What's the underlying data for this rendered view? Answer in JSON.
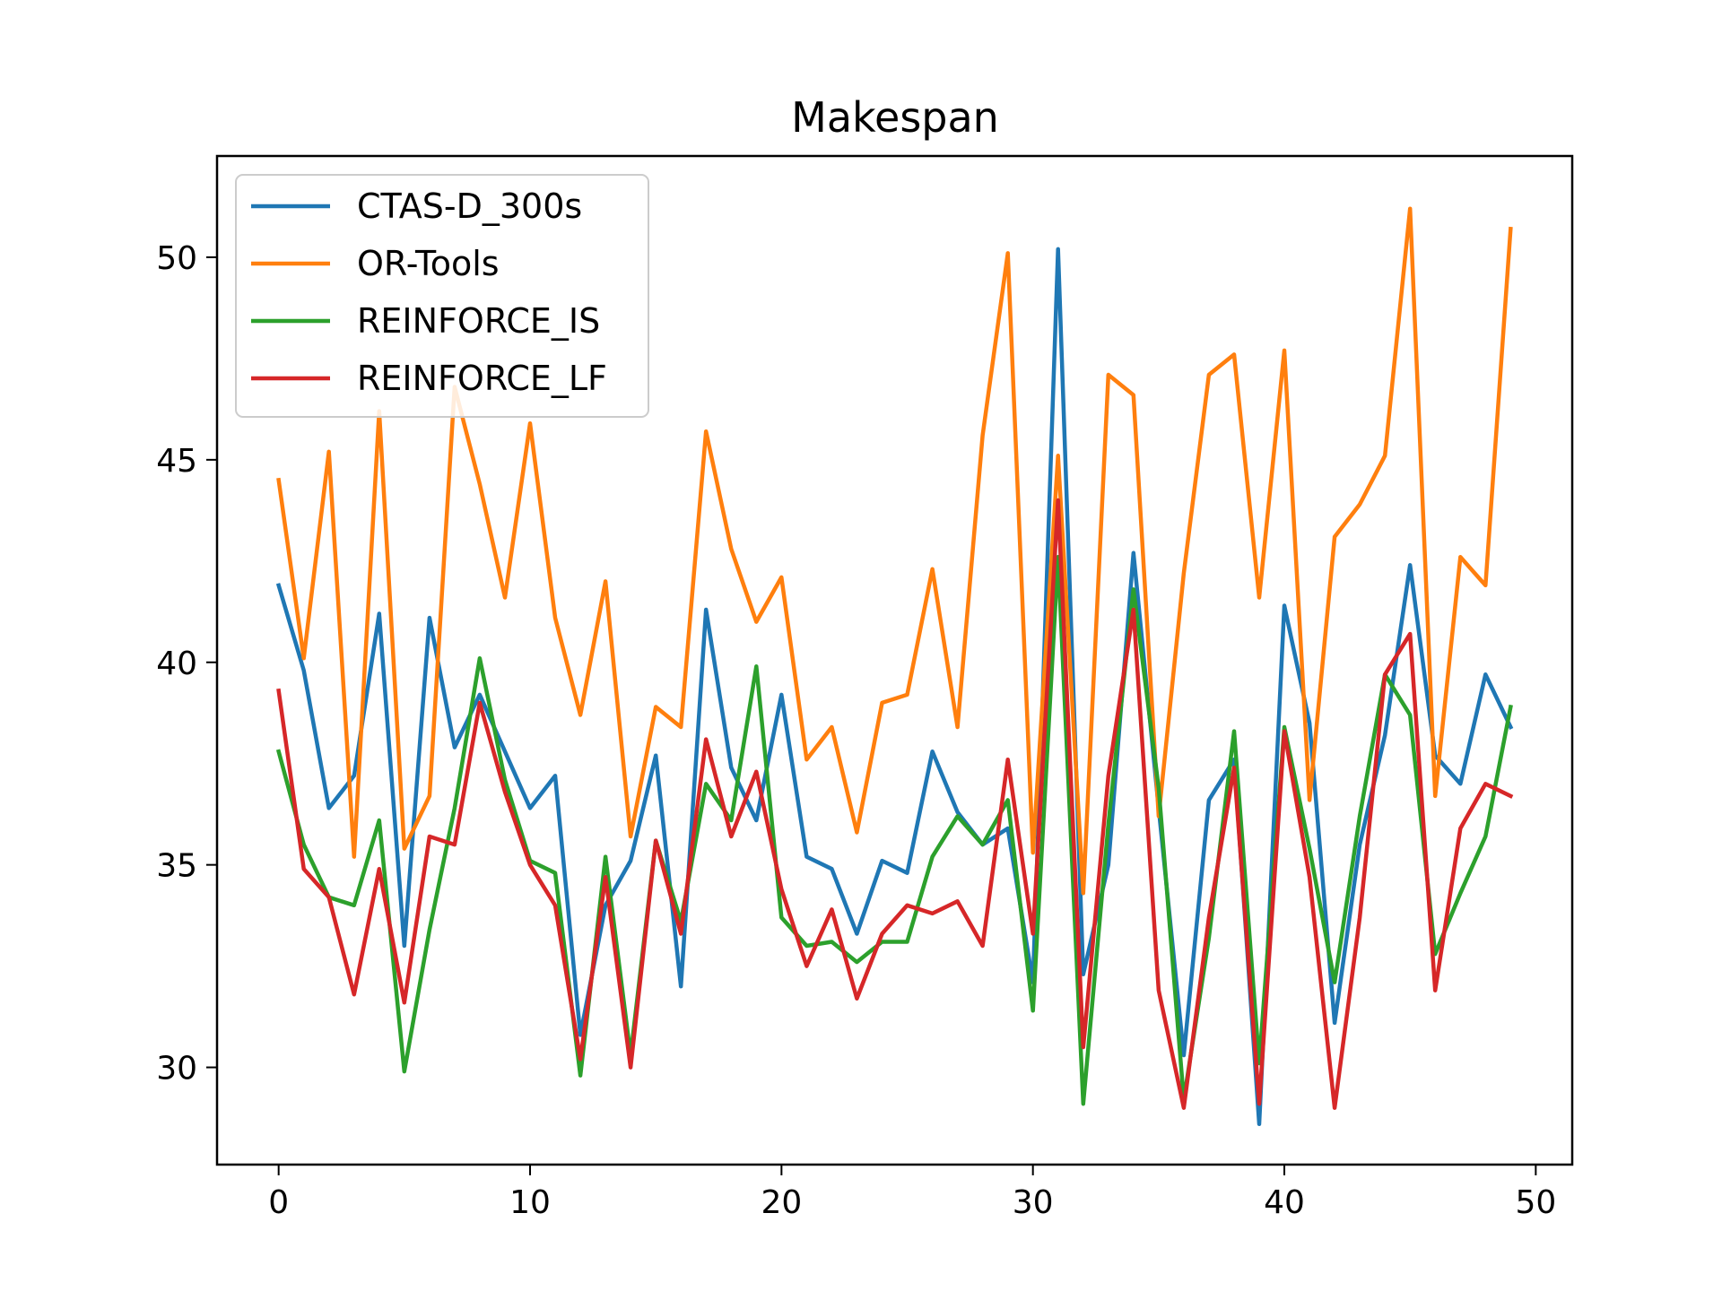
{
  "chart_data": {
    "type": "line",
    "title": "Makespan",
    "xlabel": "",
    "ylabel": "",
    "xlim": [
      -2.45,
      51.45
    ],
    "ylim": [
      27.6,
      52.5
    ],
    "xticks": [
      0,
      10,
      20,
      30,
      40,
      50
    ],
    "yticks": [
      30,
      35,
      40,
      45,
      50
    ],
    "grid": false,
    "legend_position": "upper-left",
    "series": [
      {
        "name": "CTAS-D_300s",
        "color": "#1f77b4",
        "values": [
          41.9,
          39.8,
          36.4,
          37.2,
          41.2,
          33.0,
          41.1,
          37.9,
          39.2,
          37.8,
          36.4,
          37.2,
          30.8,
          34.0,
          35.1,
          37.7,
          32.0,
          41.3,
          37.4,
          36.1,
          39.2,
          35.2,
          34.9,
          33.3,
          35.1,
          34.8,
          37.8,
          36.3,
          35.5,
          35.9,
          32.1,
          50.2,
          32.3,
          35.0,
          42.7,
          36.4,
          30.3,
          36.6,
          37.6,
          28.6,
          41.4,
          38.5,
          31.1,
          35.5,
          38.2,
          42.4,
          37.7,
          37.0,
          39.7,
          38.4
        ]
      },
      {
        "name": "OR-Tools",
        "color": "#ff7f0e",
        "values": [
          44.5,
          40.1,
          45.2,
          35.2,
          46.2,
          35.4,
          36.7,
          46.8,
          44.4,
          41.6,
          45.9,
          41.1,
          38.7,
          42.0,
          35.7,
          38.9,
          38.4,
          45.7,
          42.8,
          41.0,
          42.1,
          37.6,
          38.4,
          35.8,
          39.0,
          39.2,
          42.3,
          38.4,
          45.6,
          50.1,
          35.3,
          45.1,
          34.3,
          47.1,
          46.6,
          36.2,
          42.2,
          47.1,
          47.6,
          41.6,
          47.7,
          36.6,
          43.1,
          43.9,
          45.1,
          51.2,
          36.7,
          42.6,
          41.9,
          50.7
        ]
      },
      {
        "name": "REINFORCE_IS",
        "color": "#2ca02c",
        "values": [
          37.8,
          35.5,
          34.2,
          34.0,
          36.1,
          29.9,
          33.4,
          36.4,
          40.1,
          37.1,
          35.1,
          34.8,
          29.8,
          35.2,
          30.3,
          35.6,
          33.6,
          37.0,
          36.1,
          39.9,
          33.7,
          33.0,
          33.1,
          32.6,
          33.1,
          33.1,
          35.2,
          36.2,
          35.5,
          36.6,
          31.4,
          42.6,
          29.1,
          36.0,
          41.8,
          36.9,
          29.2,
          33.2,
          38.3,
          30.1,
          38.4,
          35.4,
          32.1,
          36.2,
          39.7,
          38.7,
          32.8,
          34.3,
          35.7,
          38.9
        ]
      },
      {
        "name": "REINFORCE_LF",
        "color": "#d62728",
        "values": [
          39.3,
          34.9,
          34.2,
          31.8,
          34.9,
          31.6,
          35.7,
          35.5,
          39.0,
          36.8,
          35.0,
          34.0,
          30.2,
          34.7,
          30.0,
          35.6,
          33.3,
          38.1,
          35.7,
          37.3,
          34.4,
          32.5,
          33.9,
          31.7,
          33.3,
          34.0,
          33.8,
          34.1,
          33.0,
          37.6,
          33.3,
          44.0,
          30.5,
          37.2,
          41.3,
          31.9,
          29.0,
          33.7,
          37.4,
          29.1,
          38.3,
          34.7,
          29.0,
          33.7,
          39.7,
          40.7,
          31.9,
          35.9,
          37.0,
          36.7
        ]
      }
    ]
  }
}
